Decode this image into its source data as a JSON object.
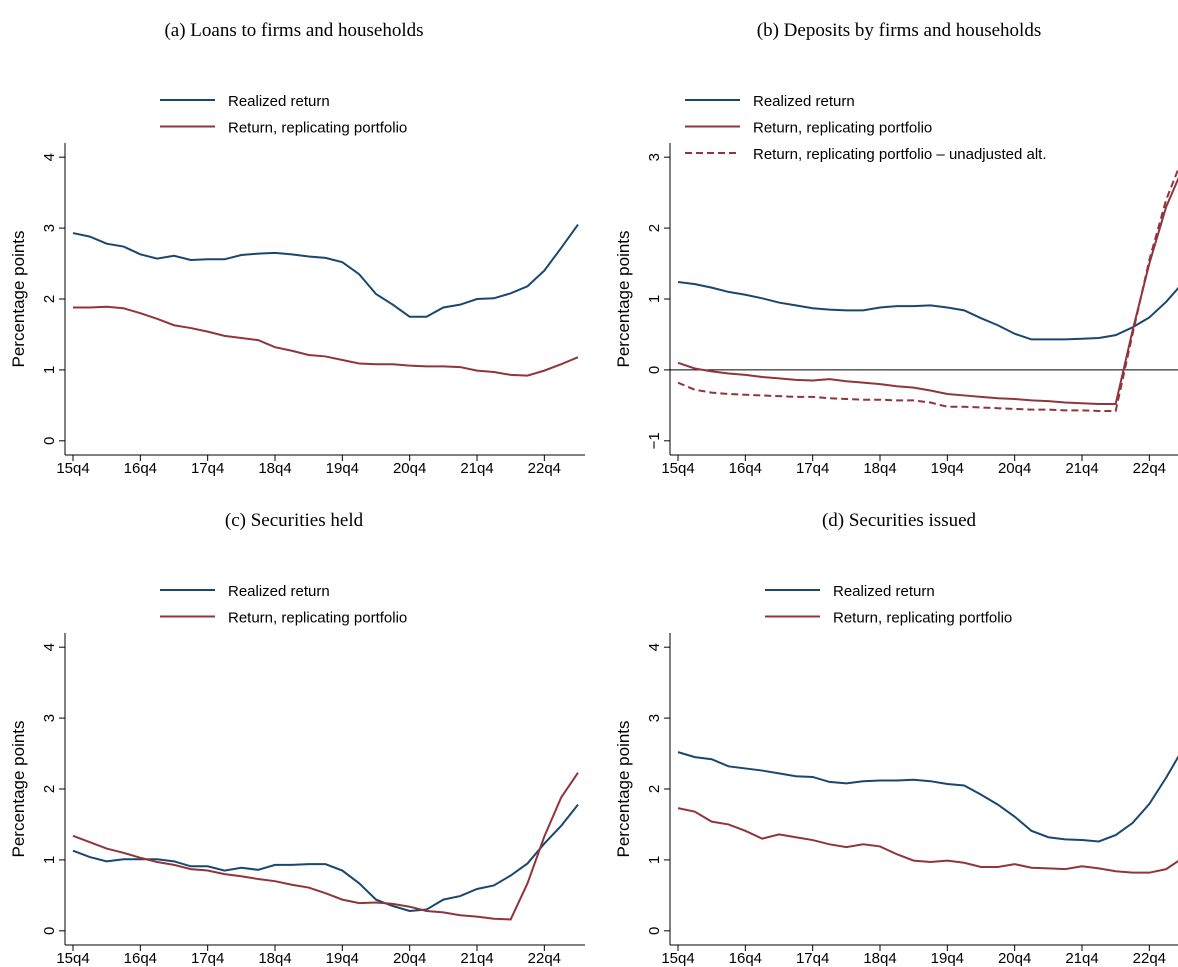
{
  "chart_data": [
    {
      "type": "line",
      "title": "(a) Loans to firms and households",
      "y_label": "Percentage points",
      "categories": [
        "15q4",
        null,
        null,
        null,
        "16q4",
        null,
        null,
        null,
        "17q4",
        null,
        null,
        null,
        "18q4",
        null,
        null,
        null,
        "19q4",
        null,
        null,
        null,
        "20q4",
        null,
        null,
        null,
        "21q4",
        null,
        null,
        null,
        "22q4",
        null,
        null
      ],
      "ylim": [
        -0.2,
        4.2
      ],
      "yticks": [
        0,
        1,
        2,
        3,
        4
      ],
      "series": [
        {
          "name": "Realized return",
          "color": "#1a476f",
          "values": [
            2.93,
            2.88,
            2.78,
            2.74,
            2.63,
            2.57,
            2.61,
            2.55,
            2.56,
            2.56,
            2.62,
            2.64,
            2.65,
            2.63,
            2.6,
            2.58,
            2.52,
            2.35,
            2.07,
            1.92,
            1.75,
            1.75,
            1.88,
            1.92,
            2.0,
            2.01,
            2.08,
            2.18,
            2.4,
            2.72,
            3.05
          ]
        },
        {
          "name": "Return, replicating portfolio",
          "color": "#90353b",
          "values": [
            1.88,
            1.88,
            1.89,
            1.87,
            1.8,
            1.72,
            1.63,
            1.59,
            1.54,
            1.48,
            1.45,
            1.42,
            1.32,
            1.27,
            1.21,
            1.19,
            1.14,
            1.09,
            1.08,
            1.08,
            1.06,
            1.05,
            1.05,
            1.04,
            0.99,
            0.97,
            0.93,
            0.92,
            0.99,
            1.08,
            1.18
          ]
        }
      ]
    },
    {
      "type": "line",
      "title": "(b) Deposits by firms and households",
      "y_label": "Percentage points",
      "categories": [
        "15q4",
        null,
        null,
        null,
        "16q4",
        null,
        null,
        null,
        "17q4",
        null,
        null,
        null,
        "18q4",
        null,
        null,
        null,
        "19q4",
        null,
        null,
        null,
        "20q4",
        null,
        null,
        null,
        "21q4",
        null,
        null,
        null,
        "22q4",
        null,
        null
      ],
      "ylim": [
        -1.2,
        3.2
      ],
      "yticks": [
        {
          "value": -1,
          "label": "−1"
        },
        0,
        1,
        2,
        3
      ],
      "reference_line": 0,
      "series": [
        {
          "name": "Realized return",
          "color": "#1a476f",
          "values": [
            1.24,
            1.21,
            1.16,
            1.1,
            1.06,
            1.01,
            0.95,
            0.91,
            0.87,
            0.85,
            0.84,
            0.84,
            0.88,
            0.9,
            0.9,
            0.91,
            0.88,
            0.84,
            0.73,
            0.63,
            0.51,
            0.43,
            0.43,
            0.43,
            0.44,
            0.45,
            0.49,
            0.6,
            0.74,
            0.96,
            1.23
          ]
        },
        {
          "name": "Return, replicating portfolio",
          "color": "#90353b",
          "values": [
            0.1,
            0.02,
            -0.02,
            -0.05,
            -0.07,
            -0.1,
            -0.12,
            -0.14,
            -0.15,
            -0.13,
            -0.16,
            -0.18,
            -0.2,
            -0.23,
            -0.25,
            -0.29,
            -0.34,
            -0.36,
            -0.38,
            -0.4,
            -0.41,
            -0.43,
            -0.44,
            -0.46,
            -0.47,
            -0.48,
            -0.48,
            0.55,
            1.5,
            2.3,
            2.85
          ]
        },
        {
          "name": "Return, replicating portfolio – unadjusted alt.",
          "color": "#90353b",
          "dash": true,
          "values": [
            -0.18,
            -0.28,
            -0.32,
            -0.34,
            -0.35,
            -0.36,
            -0.37,
            -0.38,
            -0.38,
            -0.4,
            -0.41,
            -0.42,
            -0.42,
            -0.43,
            -0.43,
            -0.46,
            -0.52,
            -0.52,
            -0.53,
            -0.54,
            -0.55,
            -0.56,
            -0.56,
            -0.57,
            -0.57,
            -0.58,
            -0.58,
            0.5,
            1.55,
            2.4,
            3.0
          ]
        }
      ]
    },
    {
      "type": "line",
      "title": "(c) Securities held",
      "y_label": "Percentage points",
      "categories": [
        "15q4",
        null,
        null,
        null,
        "16q4",
        null,
        null,
        null,
        "17q4",
        null,
        null,
        null,
        "18q4",
        null,
        null,
        null,
        "19q4",
        null,
        null,
        null,
        "20q4",
        null,
        null,
        null,
        "21q4",
        null,
        null,
        null,
        "22q4",
        null,
        null
      ],
      "ylim": [
        -0.2,
        4.2
      ],
      "yticks": [
        0,
        1,
        2,
        3,
        4
      ],
      "series": [
        {
          "name": "Realized return",
          "color": "#1a476f",
          "values": [
            1.13,
            1.04,
            0.98,
            1.01,
            1.01,
            1.01,
            0.98,
            0.91,
            0.91,
            0.85,
            0.89,
            0.86,
            0.93,
            0.93,
            0.94,
            0.94,
            0.85,
            0.67,
            0.44,
            0.35,
            0.28,
            0.3,
            0.44,
            0.49,
            0.59,
            0.64,
            0.78,
            0.95,
            1.23,
            1.48,
            1.78
          ]
        },
        {
          "name": "Return, replicating portfolio",
          "color": "#90353b",
          "values": [
            1.34,
            1.25,
            1.16,
            1.1,
            1.03,
            0.97,
            0.93,
            0.87,
            0.85,
            0.8,
            0.77,
            0.73,
            0.7,
            0.65,
            0.61,
            0.53,
            0.44,
            0.39,
            0.4,
            0.38,
            0.34,
            0.28,
            0.26,
            0.22,
            0.2,
            0.17,
            0.16,
            0.67,
            1.33,
            1.88,
            2.23
          ]
        }
      ]
    },
    {
      "type": "line",
      "title": "(d) Securities issued",
      "y_label": "Percentage points",
      "categories": [
        "15q4",
        null,
        null,
        null,
        "16q4",
        null,
        null,
        null,
        "17q4",
        null,
        null,
        null,
        "18q4",
        null,
        null,
        null,
        "19q4",
        null,
        null,
        null,
        "20q4",
        null,
        null,
        null,
        "21q4",
        null,
        null,
        null,
        "22q4",
        null,
        null
      ],
      "ylim": [
        -0.2,
        4.2
      ],
      "yticks": [
        0,
        1,
        2,
        3,
        4
      ],
      "series": [
        {
          "name": "Realized return",
          "color": "#1a476f",
          "values": [
            2.52,
            2.45,
            2.42,
            2.32,
            2.29,
            2.26,
            2.22,
            2.18,
            2.17,
            2.1,
            2.08,
            2.11,
            2.12,
            2.12,
            2.13,
            2.11,
            2.07,
            2.05,
            1.92,
            1.78,
            1.61,
            1.41,
            1.32,
            1.29,
            1.28,
            1.26,
            1.35,
            1.52,
            1.79,
            2.16,
            2.57
          ]
        },
        {
          "name": "Return, replicating portfolio",
          "color": "#90353b",
          "values": [
            1.73,
            1.68,
            1.54,
            1.5,
            1.41,
            1.3,
            1.36,
            1.32,
            1.28,
            1.22,
            1.18,
            1.22,
            1.19,
            1.08,
            0.99,
            0.97,
            0.99,
            0.96,
            0.9,
            0.9,
            0.94,
            0.89,
            0.88,
            0.87,
            0.91,
            0.88,
            0.84,
            0.82,
            0.82,
            0.87,
            1.03
          ]
        }
      ]
    }
  ]
}
